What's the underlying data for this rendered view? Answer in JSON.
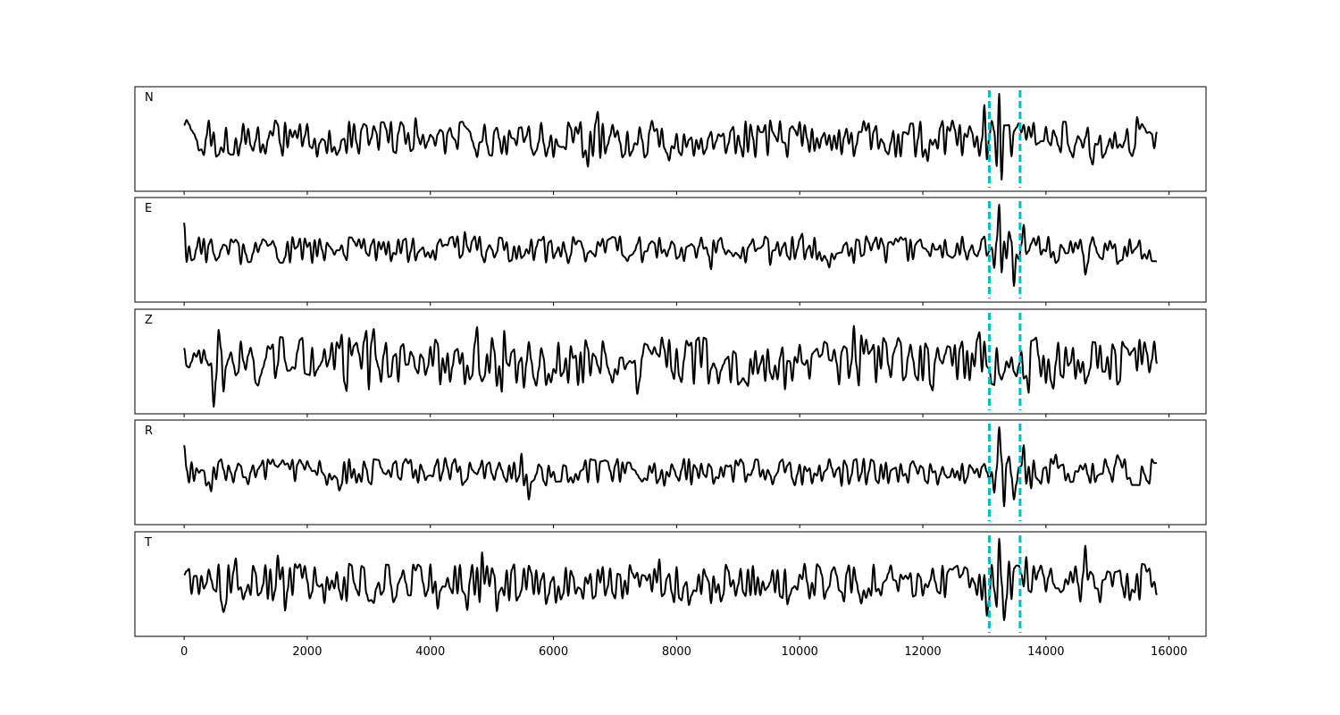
{
  "chart_data": {
    "type": "line",
    "title": "",
    "xlabel": "",
    "ylabel": "",
    "xlim": [
      -800,
      16600
    ],
    "x_ticks": [
      0,
      2000,
      4000,
      6000,
      8000,
      10000,
      12000,
      14000,
      16000
    ],
    "x_tick_labels": [
      "0",
      "2000",
      "4000",
      "6000",
      "8000",
      "10000",
      "12000",
      "14000",
      "16000"
    ],
    "shared_x": true,
    "x_start": 0,
    "x_end": 15800,
    "grid": false,
    "series_color": "#000000",
    "marker_color": "#00bfbf",
    "markers": [
      13080,
      13580
    ],
    "panels": [
      {
        "label": "N",
        "amplitude": 0.42,
        "onset_bump": 0.3,
        "event": [
          [
            13120,
            0.4
          ],
          [
            13180,
            -0.6
          ],
          [
            13230,
            1.0
          ],
          [
            13280,
            -0.9
          ],
          [
            13330,
            0.3
          ],
          [
            13500,
            0.25
          ],
          [
            13560,
            0.35
          ]
        ],
        "extras": [
          [
            13000,
            0.75
          ],
          [
            13045,
            -0.45
          ]
        ]
      },
      {
        "label": "E",
        "amplitude": 0.3,
        "onset_bump": 0.6,
        "event": [
          [
            13160,
            -0.4
          ],
          [
            13230,
            1.0
          ],
          [
            13290,
            -0.5
          ],
          [
            13380,
            0.4
          ],
          [
            13460,
            -0.8
          ],
          [
            13620,
            0.55
          ]
        ],
        "extras": [
          [
            14630,
            -0.55
          ]
        ]
      },
      {
        "label": "Z",
        "amplitude": 0.55,
        "onset_bump": 0.3,
        "event": [
          [
            13180,
            0.3
          ],
          [
            13260,
            -0.4
          ]
        ],
        "extras": [
          [
            490,
            -1.0
          ],
          [
            555,
            0.7
          ],
          [
            2960,
            0.68
          ],
          [
            3000,
            -0.62
          ],
          [
            5200,
            0.68
          ],
          [
            5155,
            -0.67
          ],
          [
            14100,
            0.95
          ],
          [
            14130,
            -0.6
          ]
        ]
      },
      {
        "label": "R",
        "amplitude": 0.3,
        "onset_bump": 0.6,
        "event": [
          [
            13160,
            -0.45
          ],
          [
            13230,
            1.0
          ],
          [
            13300,
            -0.75
          ],
          [
            13400,
            0.35
          ],
          [
            13470,
            -0.6
          ],
          [
            13620,
            0.6
          ]
        ],
        "extras": [
          [
            5600,
            -0.6
          ]
        ]
      },
      {
        "label": "T",
        "amplitude": 0.45,
        "onset_bump": 0.2,
        "event": [
          [
            13180,
            -0.5
          ],
          [
            13240,
            1.0
          ],
          [
            13300,
            -0.8
          ],
          [
            13400,
            0.5
          ]
        ],
        "extras": [
          [
            14640,
            0.85
          ],
          [
            5060,
            -0.6
          ],
          [
            4840,
            0.7
          ],
          [
            13055,
            -0.7
          ]
        ]
      }
    ]
  }
}
